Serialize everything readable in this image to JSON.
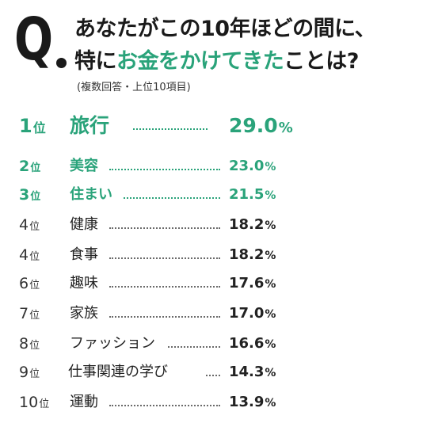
{
  "question": {
    "mark": "Q",
    "line1": "あなたがこの10年ほどの間に、",
    "line2_prefix": "特に",
    "line2_highlight": "お金をかけてきた",
    "line2_suffix": "ことは?",
    "note": "(複数回答・上位10項目)"
  },
  "colors": {
    "accent": "#2aa37a",
    "text": "#222222"
  },
  "rank_suffix": "位",
  "chart_data": {
    "type": "table",
    "title": "あなたがこの10年ほどの間に、特にお金をかけてきたことは?",
    "subtitle": "(複数回答・上位10項目)",
    "unit": "%",
    "rows": [
      {
        "rank": "1",
        "label": "旅行",
        "value": 29.0,
        "display": "29.0"
      },
      {
        "rank": "2",
        "label": "美容",
        "value": 23.0,
        "display": "23.0"
      },
      {
        "rank": "3",
        "label": "住まい",
        "value": 21.5,
        "display": "21.5"
      },
      {
        "rank": "4",
        "label": "健康",
        "value": 18.2,
        "display": "18.2"
      },
      {
        "rank": "4",
        "label": "食事",
        "value": 18.2,
        "display": "18.2"
      },
      {
        "rank": "6",
        "label": "趣味",
        "value": 17.6,
        "display": "17.6"
      },
      {
        "rank": "7",
        "label": "家族",
        "value": 17.0,
        "display": "17.0"
      },
      {
        "rank": "8",
        "label": "ファッション",
        "value": 16.6,
        "display": "16.6"
      },
      {
        "rank": "9",
        "label": "仕事関連の学び",
        "value": 14.3,
        "display": "14.3"
      },
      {
        "rank": "10",
        "label": "運動",
        "value": 13.9,
        "display": "13.9"
      }
    ]
  }
}
